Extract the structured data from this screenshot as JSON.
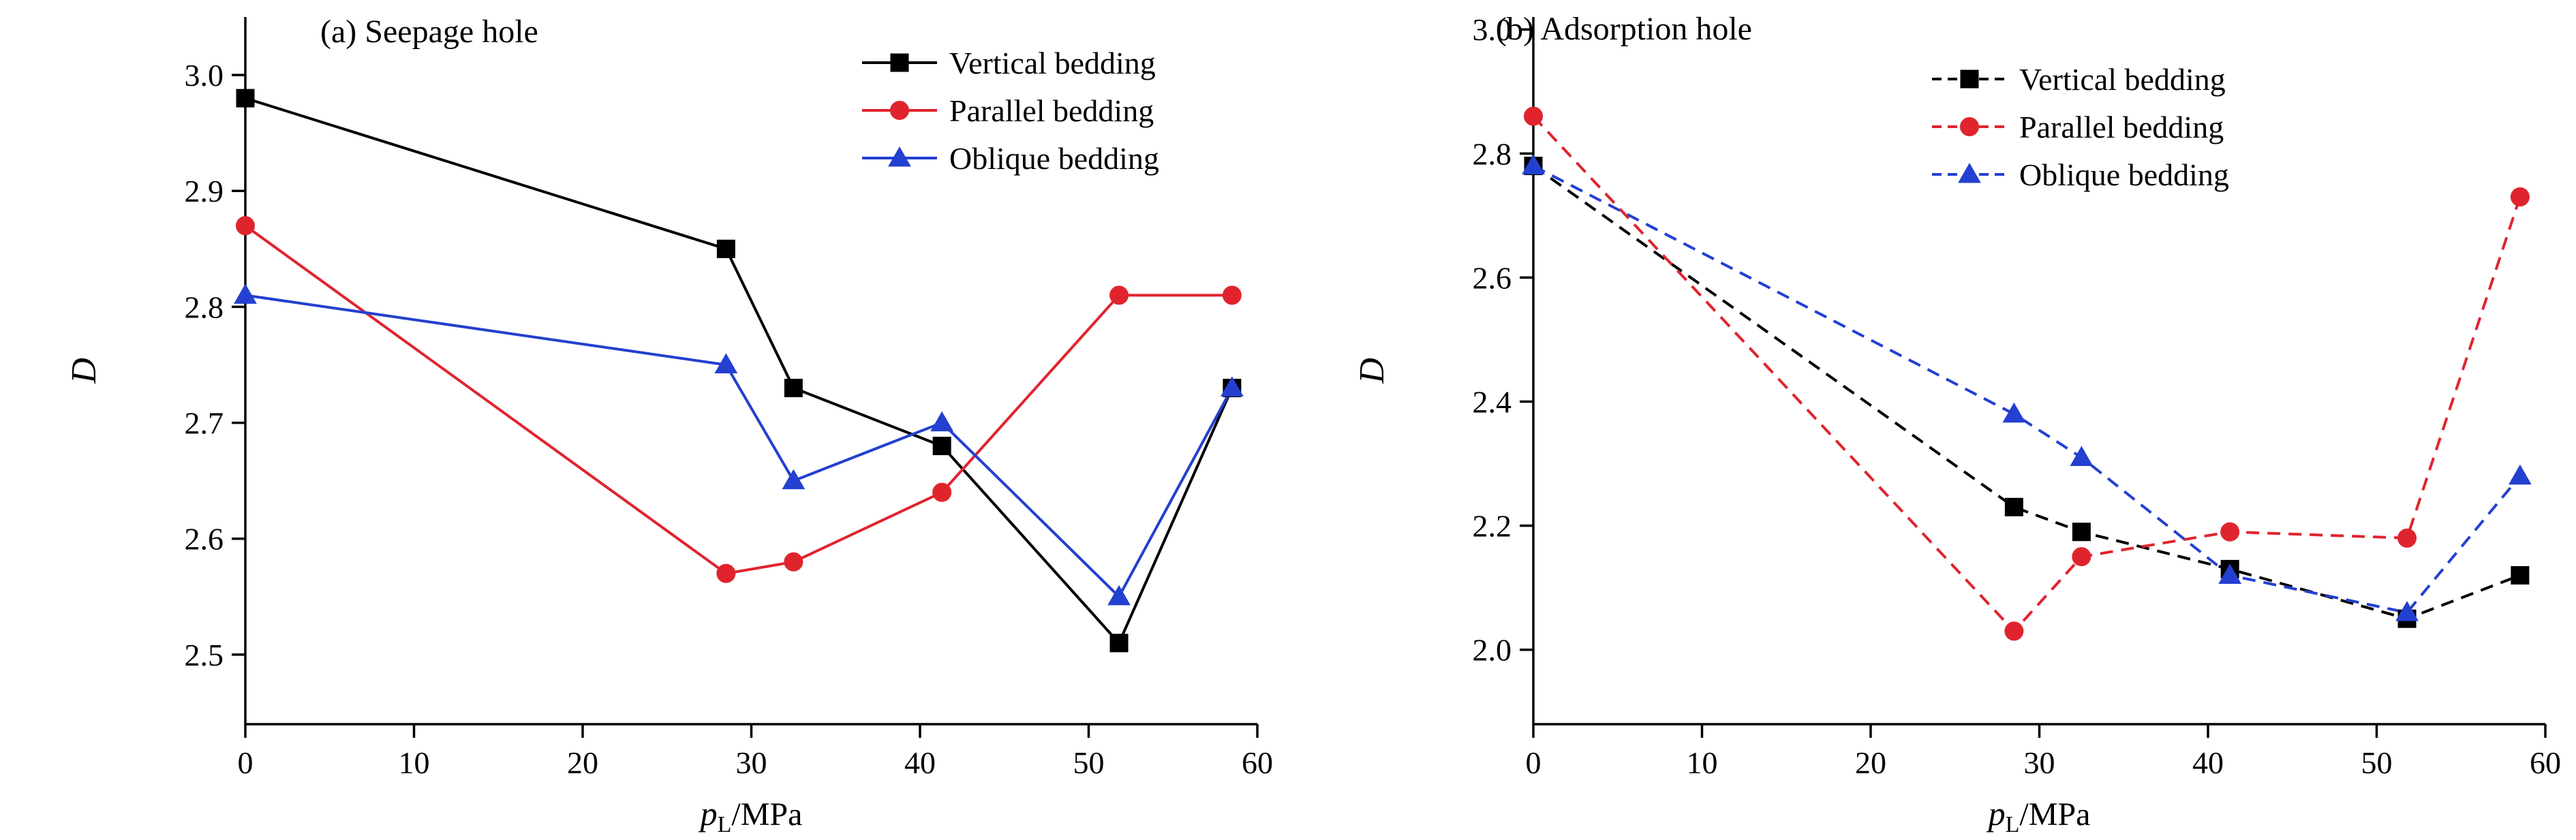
{
  "figure": {
    "background": "#ffffff",
    "axis_color": "#000000"
  },
  "chart_data": [
    {
      "type": "line",
      "title": "(a) Seepage hole",
      "xlabel": "pL/MPa",
      "xlabel_parts": {
        "italic": "p",
        "subscript": "L",
        "suffix": "/MPa"
      },
      "ylabel": "D",
      "xlim": [
        0,
        60
      ],
      "ylim": [
        2.44,
        3.05
      ],
      "xticks": [
        0,
        10,
        20,
        30,
        40,
        50,
        60
      ],
      "yticks": [
        2.5,
        2.6,
        2.7,
        2.8,
        2.9,
        3.0
      ],
      "grid": false,
      "line_style": "solid",
      "legend_position": "upper-right-inside",
      "x": [
        0,
        28.5,
        32.5,
        41.3,
        51.8,
        58.5
      ],
      "series": [
        {
          "name": "Vertical bedding",
          "color": "#000000",
          "marker": "square",
          "values": [
            2.98,
            2.85,
            2.73,
            2.68,
            2.51,
            2.73
          ]
        },
        {
          "name": "Parallel bedding",
          "color": "#e0242e",
          "marker": "circle",
          "values": [
            2.87,
            2.57,
            2.58,
            2.64,
            2.81,
            2.81
          ]
        },
        {
          "name": "Oblique bedding",
          "color": "#2340d0",
          "marker": "triangle",
          "values": [
            2.81,
            2.75,
            2.65,
            2.7,
            2.55,
            2.73
          ]
        }
      ]
    },
    {
      "type": "line",
      "title": "(b) Adsorption hole",
      "xlabel": "pL/MPa",
      "xlabel_parts": {
        "italic": "p",
        "subscript": "L",
        "suffix": "/MPa"
      },
      "ylabel": "D",
      "xlim": [
        0,
        60
      ],
      "ylim": [
        1.88,
        3.02
      ],
      "xticks": [
        0,
        10,
        20,
        30,
        40,
        50,
        60
      ],
      "yticks": [
        2.0,
        2.2,
        2.4,
        2.6,
        2.8,
        3.0
      ],
      "grid": false,
      "line_style": "dashed",
      "legend_position": "upper-right-inside",
      "x": [
        0,
        28.5,
        32.5,
        41.3,
        51.8,
        58.5
      ],
      "series": [
        {
          "name": "Vertical bedding",
          "color": "#000000",
          "marker": "square",
          "values": [
            2.78,
            2.23,
            2.19,
            2.13,
            2.05,
            2.12
          ]
        },
        {
          "name": "Parallel bedding",
          "color": "#e0242e",
          "marker": "circle",
          "values": [
            2.86,
            2.03,
            2.15,
            2.19,
            2.18,
            2.73
          ]
        },
        {
          "name": "Oblique bedding",
          "color": "#2340d0",
          "marker": "triangle",
          "values": [
            2.78,
            2.38,
            2.31,
            2.12,
            2.06,
            2.28
          ]
        }
      ]
    }
  ]
}
